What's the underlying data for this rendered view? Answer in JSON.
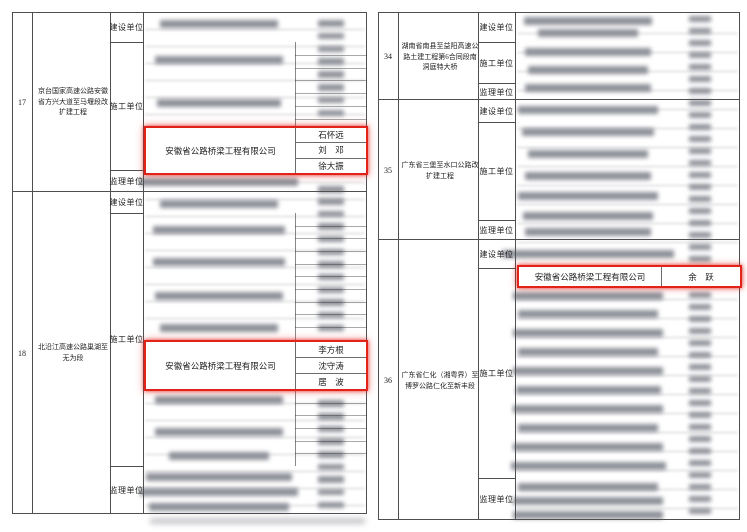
{
  "left_table": {
    "rows": [
      {
        "no": "17",
        "project": "京台国家高速公路安徽省方兴大道至马堰段改扩建工程",
        "unit_labels": [
          "建设单位",
          "施工单位",
          "监理单位"
        ],
        "highlight": {
          "company": "安徽省公路桥梁工程有限公司",
          "persons": [
            "石怀远",
            "刘　邓",
            "徐大振"
          ]
        }
      },
      {
        "no": "18",
        "project": "北沿江高速公路巢湖至无为段",
        "unit_labels": [
          "建设单位",
          "施工单位",
          "监理单位"
        ],
        "highlight": {
          "company": "安徽省公路桥梁工程有限公司",
          "persons": [
            "李方根",
            "沈守涛",
            "居　波"
          ]
        }
      }
    ]
  },
  "right_table": {
    "rows": [
      {
        "no": "34",
        "project": "湖南省南县至益阳高速公路土建工程第6合同段南洞庭特大桥",
        "unit_labels": [
          "建设单位",
          "施工单位",
          "监理单位"
        ]
      },
      {
        "no": "35",
        "project": "广东省三堡至水口公路改扩建工程",
        "unit_labels": [
          "建设单位",
          "施工单位",
          "监理单位"
        ]
      },
      {
        "no": "36",
        "project": "广东省仁化（湘粤界）至博罗公路仁化至新丰段",
        "unit_labels": [
          "建设单位",
          "施工单位",
          "监理单位"
        ],
        "highlight": {
          "company": "安徽省公路桥梁工程有限公司",
          "persons": [
            "余　跃"
          ]
        }
      }
    ]
  },
  "colors": {
    "highlight_box": "#e2231a",
    "table_line": "#4f4f52"
  }
}
